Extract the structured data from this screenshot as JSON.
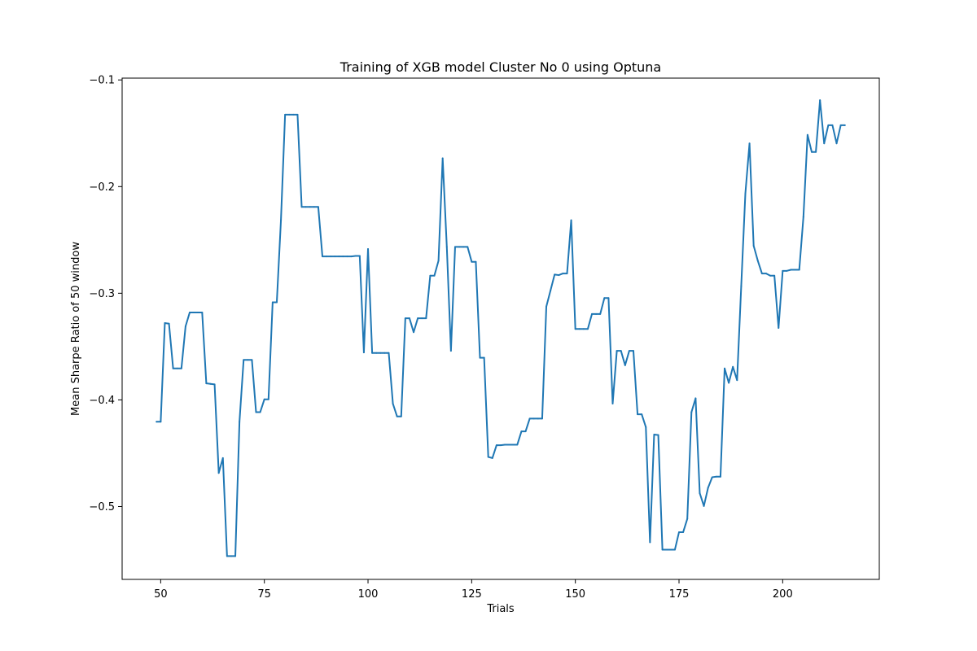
{
  "chart_data": {
    "type": "line",
    "title": "Training of XGB model Cluster No 0 using Optuna",
    "xlabel": "Trials",
    "ylabel": "Mean Sharpe Ratio of 50 window",
    "xlim": [
      40.7,
      223.3
    ],
    "ylim": [
      -0.5683,
      -0.0983
    ],
    "xticks": [
      50,
      75,
      100,
      125,
      150,
      175,
      200
    ],
    "xtick_labels": [
      "50",
      "75",
      "100",
      "125",
      "150",
      "175",
      "200"
    ],
    "yticks": [
      -0.5,
      -0.4,
      -0.3,
      -0.2,
      -0.1
    ],
    "ytick_labels": [
      "−0.5",
      "−0.4",
      "−0.3",
      "−0.2",
      "−0.1"
    ],
    "grid": false,
    "series": [
      {
        "color": "#1f77b4",
        "x": [
          49,
          50,
          51,
          52,
          53,
          54,
          55,
          56,
          57,
          58,
          59,
          60,
          61,
          62,
          63,
          64,
          65,
          66,
          67,
          68,
          69,
          70,
          71,
          72,
          73,
          74,
          75,
          76,
          77,
          78,
          79,
          80,
          81,
          82,
          83,
          84,
          85,
          86,
          87,
          88,
          89,
          90,
          91,
          92,
          93,
          94,
          95,
          96,
          97,
          98,
          99,
          100,
          101,
          102,
          103,
          104,
          105,
          106,
          107,
          108,
          109,
          110,
          111,
          112,
          113,
          114,
          115,
          116,
          117,
          118,
          119,
          120,
          121,
          122,
          123,
          124,
          125,
          126,
          127,
          128,
          129,
          130,
          131,
          132,
          133,
          134,
          135,
          136,
          137,
          138,
          139,
          140,
          141,
          142,
          143,
          144,
          145,
          146,
          147,
          148,
          149,
          150,
          151,
          152,
          153,
          154,
          155,
          156,
          157,
          158,
          159,
          160,
          161,
          162,
          163,
          164,
          165,
          166,
          167,
          168,
          169,
          170,
          171,
          172,
          173,
          174,
          175,
          176,
          177,
          178,
          179,
          180,
          181,
          182,
          183,
          184,
          185,
          186,
          187,
          188,
          189,
          190,
          191,
          192,
          193,
          194,
          195,
          196,
          197,
          198,
          199,
          200,
          201,
          202,
          203,
          204,
          205,
          206,
          207,
          208,
          209,
          210,
          211,
          212,
          213,
          214,
          215
        ],
        "y": [
          -0.4205,
          -0.4205,
          -0.328,
          -0.3285,
          -0.3705,
          -0.3705,
          -0.3705,
          -0.331,
          -0.318,
          -0.318,
          -0.318,
          -0.318,
          -0.3845,
          -0.385,
          -0.3855,
          -0.4685,
          -0.4545,
          -0.5465,
          -0.5465,
          -0.5465,
          -0.4205,
          -0.3625,
          -0.3625,
          -0.3625,
          -0.4115,
          -0.4115,
          -0.3995,
          -0.3995,
          -0.3085,
          -0.3085,
          -0.2315,
          -0.1325,
          -0.1325,
          -0.1325,
          -0.1325,
          -0.219,
          -0.219,
          -0.219,
          -0.219,
          -0.219,
          -0.2655,
          -0.2655,
          -0.2655,
          -0.2655,
          -0.2655,
          -0.2655,
          -0.2655,
          -0.2655,
          -0.265,
          -0.265,
          -0.3555,
          -0.2585,
          -0.356,
          -0.356,
          -0.356,
          -0.356,
          -0.356,
          -0.4035,
          -0.4155,
          -0.4155,
          -0.3235,
          -0.3235,
          -0.3365,
          -0.3235,
          -0.3235,
          -0.3235,
          -0.2835,
          -0.2835,
          -0.2695,
          -0.1735,
          -0.2565,
          -0.354,
          -0.2565,
          -0.2565,
          -0.2565,
          -0.2565,
          -0.2705,
          -0.2705,
          -0.3605,
          -0.3605,
          -0.4535,
          -0.4545,
          -0.4425,
          -0.4425,
          -0.442,
          -0.442,
          -0.442,
          -0.442,
          -0.4295,
          -0.4295,
          -0.4175,
          -0.4175,
          -0.4175,
          -0.4175,
          -0.3125,
          -0.2975,
          -0.2825,
          -0.283,
          -0.2815,
          -0.2815,
          -0.2315,
          -0.3335,
          -0.3335,
          -0.3335,
          -0.3335,
          -0.3195,
          -0.3195,
          -0.3195,
          -0.3045,
          -0.3045,
          -0.4035,
          -0.354,
          -0.354,
          -0.3675,
          -0.354,
          -0.354,
          -0.4135,
          -0.4135,
          -0.4255,
          -0.5335,
          -0.4325,
          -0.433,
          -0.5405,
          -0.5405,
          -0.5405,
          -0.5405,
          -0.524,
          -0.524,
          -0.5115,
          -0.4115,
          -0.3985,
          -0.4875,
          -0.4995,
          -0.4825,
          -0.4725,
          -0.472,
          -0.472,
          -0.3705,
          -0.384,
          -0.369,
          -0.3815,
          -0.2935,
          -0.2065,
          -0.1595,
          -0.2555,
          -0.2695,
          -0.2815,
          -0.2815,
          -0.2835,
          -0.2835,
          -0.3325,
          -0.279,
          -0.279,
          -0.278,
          -0.278,
          -0.278,
          -0.2285,
          -0.1515,
          -0.1675,
          -0.1675,
          -0.119,
          -0.1595,
          -0.1425,
          -0.1425,
          -0.1595,
          -0.1425,
          -0.1425
        ]
      }
    ]
  }
}
